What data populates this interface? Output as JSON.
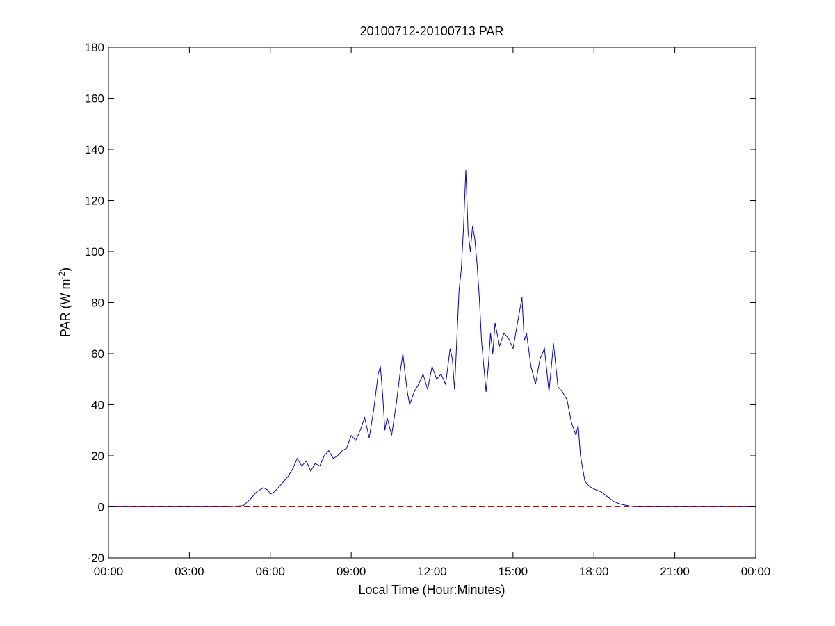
{
  "chart_data": {
    "type": "line",
    "title": "20100712-20100713 PAR",
    "xlabel": "Local Time (Hour:Minutes)",
    "ylabel_base": "PAR (W m",
    "ylabel_sup": "-2",
    "ylabel_close": ")",
    "xlim": [
      "00:00",
      "24:00"
    ],
    "ylim": [
      -20,
      180
    ],
    "x_ticks": [
      "00:00",
      "03:00",
      "06:00",
      "09:00",
      "12:00",
      "15:00",
      "18:00",
      "21:00",
      "00:00"
    ],
    "y_ticks": [
      -20,
      0,
      20,
      40,
      60,
      80,
      100,
      120,
      140,
      160,
      180
    ],
    "grid": false,
    "series": [
      {
        "color": "#0000cc",
        "style": "solid",
        "x": [
          "00:00",
          "04:30",
          "05:00",
          "05:15",
          "05:30",
          "05:45",
          "05:55",
          "06:00",
          "06:10",
          "06:20",
          "06:30",
          "06:40",
          "06:50",
          "07:00",
          "07:10",
          "07:20",
          "07:30",
          "07:40",
          "07:50",
          "08:00",
          "08:10",
          "08:20",
          "08:30",
          "08:40",
          "08:50",
          "09:00",
          "09:10",
          "09:20",
          "09:30",
          "09:40",
          "09:50",
          "10:00",
          "10:05",
          "10:10",
          "10:15",
          "10:20",
          "10:30",
          "10:40",
          "10:50",
          "10:55",
          "11:00",
          "11:05",
          "11:10",
          "11:20",
          "11:30",
          "11:40",
          "11:50",
          "12:00",
          "12:10",
          "12:20",
          "12:30",
          "12:40",
          "12:45",
          "12:50",
          "13:00",
          "13:05",
          "13:10",
          "13:15",
          "13:20",
          "13:25",
          "13:30",
          "13:35",
          "13:40",
          "13:45",
          "13:50",
          "14:00",
          "14:05",
          "14:10",
          "14:15",
          "14:20",
          "14:30",
          "14:40",
          "14:50",
          "15:00",
          "15:10",
          "15:20",
          "15:25",
          "15:30",
          "15:40",
          "15:50",
          "16:00",
          "16:10",
          "16:20",
          "16:30",
          "16:40",
          "16:50",
          "17:00",
          "17:10",
          "17:20",
          "17:25",
          "17:30",
          "17:40",
          "17:50",
          "18:00",
          "18:15",
          "18:30",
          "18:45",
          "19:00",
          "19:15",
          "19:30",
          "20:00",
          "24:00"
        ],
        "y": [
          0,
          0,
          0.5,
          3,
          6,
          7.5,
          6.5,
          5,
          6,
          8,
          10,
          12,
          15,
          19,
          16,
          18,
          14,
          17,
          16,
          20,
          22,
          19,
          20,
          22,
          23,
          28,
          26,
          30,
          35,
          27,
          38,
          52,
          55,
          44,
          30,
          35,
          28,
          40,
          54,
          60,
          52,
          45,
          40,
          45,
          48,
          52,
          46,
          55,
          50,
          52,
          48,
          62,
          58,
          46,
          85,
          93,
          110,
          132,
          108,
          100,
          110,
          105,
          95,
          82,
          65,
          45,
          55,
          68,
          60,
          72,
          63,
          68,
          66,
          62,
          72,
          82,
          65,
          68,
          55,
          48,
          58,
          62,
          45,
          64,
          47,
          45,
          42,
          33,
          28,
          32,
          20,
          10,
          8,
          7,
          6,
          4,
          2,
          1,
          0.5,
          0,
          0,
          0
        ]
      },
      {
        "color": "#cc0000",
        "style": "dashed",
        "x": [
          "00:00",
          "24:00"
        ],
        "y": [
          0,
          0
        ]
      }
    ]
  }
}
